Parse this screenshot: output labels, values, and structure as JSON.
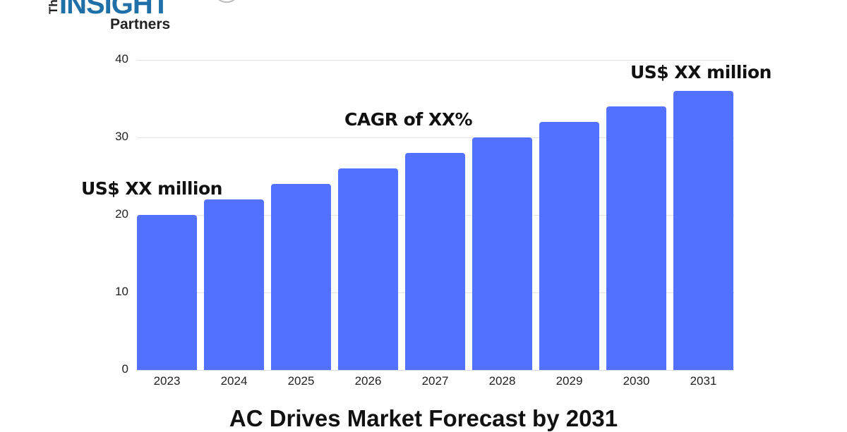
{
  "logo": {
    "the": "The",
    "insight": "INSIGHT",
    "partners": "Partners"
  },
  "chart_data": {
    "type": "bar",
    "title": "AC Drives Market Forecast by 2031",
    "xlabel": "",
    "ylabel": "",
    "categories": [
      "2023",
      "2024",
      "2025",
      "2026",
      "2027",
      "2028",
      "2029",
      "2030",
      "2031"
    ],
    "values": [
      20,
      22,
      24,
      26,
      28,
      30,
      32,
      34,
      36
    ],
    "ylim": [
      0,
      40
    ],
    "yticks": [
      0,
      10,
      20,
      30,
      40
    ],
    "grid": true,
    "bar_color": "#5271ff",
    "annotations": [
      {
        "text": "US$ XX million",
        "anchor": "2023"
      },
      {
        "text": "CAGR of XX%",
        "anchor": "2027"
      },
      {
        "text": "US$ XX million",
        "anchor": "2031"
      }
    ]
  }
}
